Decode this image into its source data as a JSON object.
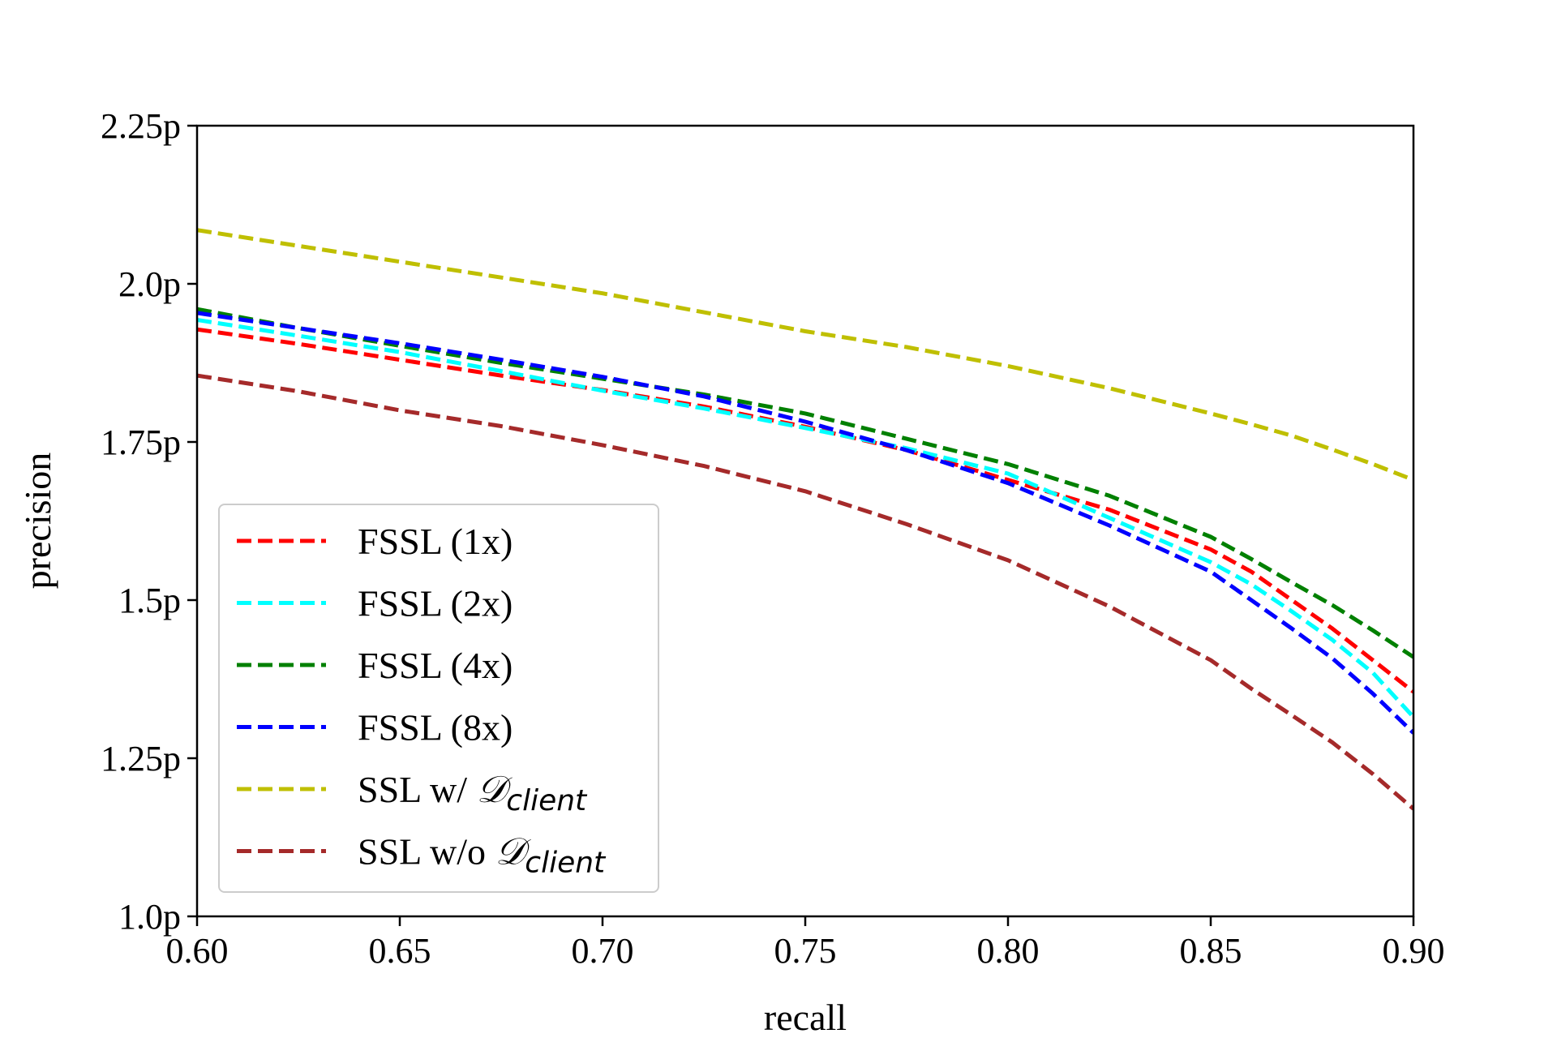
{
  "chart_data": {
    "type": "line",
    "title": "",
    "xlabel": "recall",
    "ylabel": "precision",
    "xlim": [
      0.6,
      0.9
    ],
    "ylim": [
      1.0,
      2.25
    ],
    "xticks": [
      0.6,
      0.65,
      0.7,
      0.75,
      0.8,
      0.85,
      0.9
    ],
    "xtick_labels": [
      "0.60",
      "0.65",
      "0.70",
      "0.75",
      "0.80",
      "0.85",
      "0.90"
    ],
    "yticks": [
      1.0,
      1.25,
      1.5,
      1.75,
      2.0,
      2.25
    ],
    "ytick_labels": [
      "1.0p",
      "1.25p",
      "1.5p",
      "1.75p",
      "2.0p",
      "2.25p"
    ],
    "grid": false,
    "legend_position": "lower-left",
    "x": [
      0.6,
      0.625,
      0.65,
      0.675,
      0.7,
      0.725,
      0.75,
      0.775,
      0.8,
      0.825,
      0.85,
      0.86,
      0.87,
      0.88,
      0.89,
      0.9
    ],
    "series": [
      {
        "name": "FSSL (1x)",
        "color": "#ff0000",
        "label_main": "FSSL (1x)",
        "label_math": "",
        "values": [
          1.928,
          1.905,
          1.88,
          1.855,
          1.832,
          1.806,
          1.774,
          1.737,
          1.69,
          1.643,
          1.58,
          1.545,
          1.5,
          1.455,
          1.405,
          1.355
        ]
      },
      {
        "name": "FSSL (2x)",
        "color": "#00ffff",
        "label_main": "FSSL (2x)",
        "label_math": "",
        "values": [
          1.943,
          1.918,
          1.892,
          1.862,
          1.831,
          1.803,
          1.772,
          1.74,
          1.7,
          1.63,
          1.56,
          1.525,
          1.482,
          1.437,
          1.385,
          1.315
        ]
      },
      {
        "name": "FSSL (4x)",
        "color": "#008000",
        "label_main": "FSSL (4x)",
        "label_math": "",
        "values": [
          1.96,
          1.93,
          1.902,
          1.875,
          1.85,
          1.825,
          1.795,
          1.755,
          1.715,
          1.665,
          1.6,
          1.565,
          1.528,
          1.492,
          1.452,
          1.41
        ]
      },
      {
        "name": "FSSL (8x)",
        "color": "#0000ff",
        "label_main": "FSSL (8x)",
        "label_math": "",
        "values": [
          1.954,
          1.93,
          1.906,
          1.88,
          1.853,
          1.822,
          1.782,
          1.737,
          1.685,
          1.618,
          1.545,
          1.5,
          1.455,
          1.408,
          1.352,
          1.29
        ]
      },
      {
        "name": "SSL w/ D_client",
        "color": "#bfbf00",
        "label_main": "SSL w/ ",
        "label_math": "client",
        "values": [
          2.085,
          2.06,
          2.035,
          2.01,
          1.985,
          1.955,
          1.925,
          1.9,
          1.87,
          1.835,
          1.795,
          1.778,
          1.76,
          1.738,
          1.715,
          1.69
        ]
      },
      {
        "name": "SSL w/o D_client",
        "color": "#a52a2a",
        "label_main": "SSL w/o ",
        "label_math": "client",
        "values": [
          1.855,
          1.83,
          1.8,
          1.775,
          1.745,
          1.712,
          1.672,
          1.62,
          1.563,
          1.49,
          1.405,
          1.36,
          1.318,
          1.275,
          1.225,
          1.17
        ]
      }
    ]
  }
}
